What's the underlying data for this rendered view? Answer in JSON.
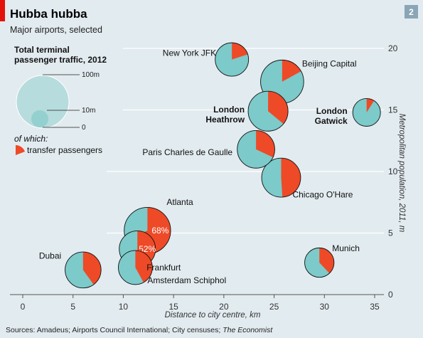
{
  "header": {
    "title": "Hubba hubba",
    "subtitle": "Major airports, selected",
    "page_number": "2"
  },
  "legend": {
    "title_line1": "Total terminal",
    "title_line2": "passenger traffic, 2012",
    "size_large_label": "100m",
    "size_mid_label": "10m",
    "size_zero_label": "0",
    "of_which": "of which:",
    "transfer_label": "transfer passengers"
  },
  "colors": {
    "background": "#e2ebf0",
    "bubble": "#7ccaca",
    "transfer": "#ee4a27",
    "legend_bubble": "#b7dcdd",
    "legend_bubble_small": "#93d0cf",
    "gridline": "#ffffff",
    "brand_red": "#e3120b",
    "page_box": "#8aa6b6"
  },
  "chart_data": {
    "type": "bubble-pie",
    "title": "Hubba hubba",
    "subtitle": "Major airports, selected",
    "xlabel": "Distance to city centre, km",
    "ylabel": "Metropolitan population, 2011, m",
    "xlim": [
      -1,
      36
    ],
    "ylim": [
      0,
      20.5
    ],
    "xticks": [
      0,
      5,
      10,
      15,
      20,
      25,
      30,
      35
    ],
    "yticks": [
      0,
      5,
      10,
      15,
      20
    ],
    "y_axis_side": "right",
    "grid": "horizontal",
    "size_variable": "Total terminal passenger traffic, 2012 (m)",
    "slice_variable": "transfer passengers (share)",
    "points": [
      {
        "name": "New York JFK",
        "x": 20.8,
        "y": 19.1,
        "traffic": 49,
        "transfer": 0.2,
        "bold": false,
        "lines": [
          "New York JFK"
        ],
        "show_pct": false
      },
      {
        "name": "Beijing Capital",
        "x": 25.8,
        "y": 17.3,
        "traffic": 82,
        "transfer": 0.17,
        "bold": false,
        "lines": [
          "Beijing Capital"
        ],
        "show_pct": false
      },
      {
        "name": "London Gatwick",
        "x": 34.2,
        "y": 14.8,
        "traffic": 34,
        "transfer": 0.09,
        "bold": true,
        "lines": [
          "London",
          "Gatwick"
        ],
        "show_pct": false
      },
      {
        "name": "London Heathrow",
        "x": 24.4,
        "y": 14.9,
        "traffic": 70,
        "transfer": 0.36,
        "bold": true,
        "lines": [
          "London",
          "Heathrow"
        ],
        "show_pct": false
      },
      {
        "name": "Paris Charles de Gaulle",
        "x": 23.2,
        "y": 11.8,
        "traffic": 62,
        "transfer": 0.32,
        "bold": false,
        "lines": [
          "Paris Charles de Gaulle"
        ],
        "show_pct": false
      },
      {
        "name": "Chicago O'Hare",
        "x": 25.7,
        "y": 9.5,
        "traffic": 67,
        "transfer": 0.49,
        "bold": false,
        "lines": [
          "Chicago O'Hare"
        ],
        "show_pct": false
      },
      {
        "name": "Atlanta",
        "x": 12.4,
        "y": 5.2,
        "traffic": 95,
        "transfer": 0.68,
        "bold": false,
        "lines": [
          "Atlanta"
        ],
        "show_pct": true,
        "pct_label": "68%"
      },
      {
        "name": "Frankfurt",
        "x": 11.4,
        "y": 3.7,
        "traffic": 58,
        "transfer": 0.52,
        "bold": false,
        "lines": [
          "Frankfurt"
        ],
        "show_pct": true,
        "pct_label": "52%"
      },
      {
        "name": "Dubai",
        "x": 6.0,
        "y": 2.0,
        "traffic": 57,
        "transfer": 0.4,
        "bold": false,
        "lines": [
          "Dubai"
        ],
        "show_pct": false
      },
      {
        "name": "Amsterdam Schiphol",
        "x": 11.2,
        "y": 2.2,
        "traffic": 51,
        "transfer": 0.42,
        "bold": false,
        "lines": [
          "Amsterdam Schiphol"
        ],
        "show_pct": false
      },
      {
        "name": "Munich",
        "x": 29.5,
        "y": 2.6,
        "traffic": 38,
        "transfer": 0.38,
        "bold": false,
        "lines": [
          "Munich"
        ],
        "show_pct": false
      }
    ]
  },
  "footer": {
    "source": "Sources: Amadeus; Airports Council International; City censuses; ",
    "source_italic": "The Economist"
  }
}
